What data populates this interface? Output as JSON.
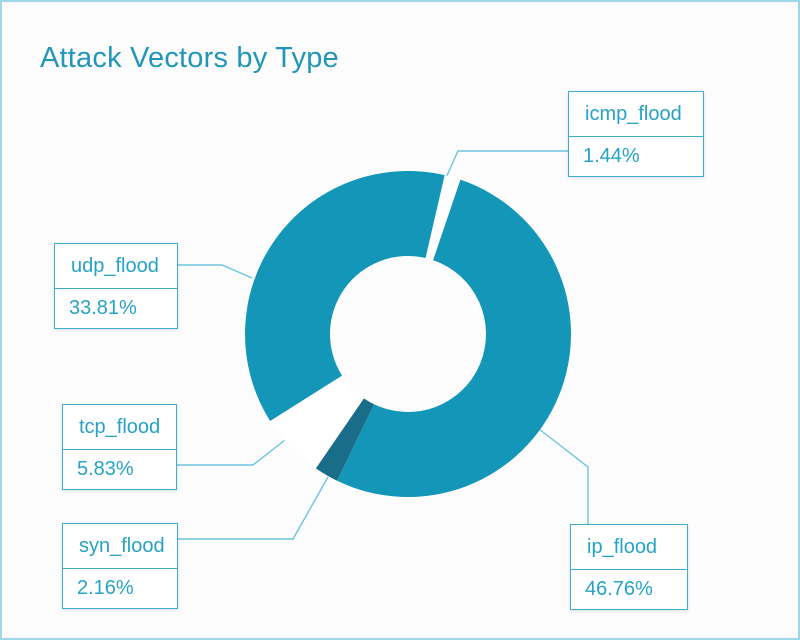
{
  "title": "Attack Vectors by Type",
  "colors": {
    "teal": "#1496b8",
    "dark_teal": "#1a6d89",
    "white_slice": "#ffffff",
    "leader": "#6cc5de",
    "box_border": "#41adca",
    "text": "#26a3c4",
    "title_text": "#2196b9",
    "page_border": "#9ed8e8",
    "background": "#fcfcfd"
  },
  "chart_data": {
    "type": "pie",
    "donut": true,
    "title": "Attack Vectors by Type",
    "start_angle_deg": 13,
    "clockwise": true,
    "legend_position": "callout-boxes",
    "categories": [
      "icmp_flood",
      "ip_flood",
      "syn_flood",
      "tcp_flood",
      "udp_flood"
    ],
    "values": [
      1.44,
      46.76,
      2.16,
      5.83,
      33.81
    ],
    "percent_labels": [
      "1.44%",
      "46.76%",
      "2.16%",
      "5.83%",
      "33.81%"
    ],
    "slice_colors": [
      "#ffffff",
      "#1496b8",
      "#1a6d89",
      "#ffffff",
      "#1496b8"
    ]
  },
  "callouts": {
    "icmp": {
      "label": "icmp_flood",
      "value": "1.44%"
    },
    "udp": {
      "label": "udp_flood",
      "value": "33.81%"
    },
    "tcp": {
      "label": "tcp_flood",
      "value": "5.83%"
    },
    "syn": {
      "label": "syn_flood",
      "value": "2.16%"
    },
    "ip": {
      "label": "ip_flood",
      "value": "46.76%"
    }
  }
}
